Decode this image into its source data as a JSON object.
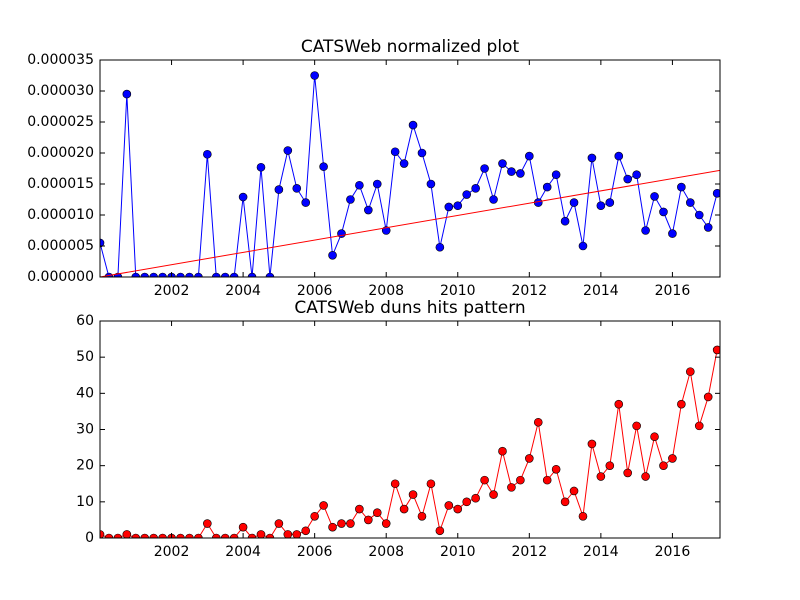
{
  "chart_data": [
    {
      "type": "line",
      "title": "CATSWeb normalized plot",
      "x": [
        2000,
        2000.25,
        2000.5,
        2000.75,
        2001,
        2001.25,
        2001.5,
        2001.75,
        2002,
        2002.25,
        2002.5,
        2002.75,
        2003,
        2003.25,
        2003.5,
        2003.75,
        2004,
        2004.25,
        2004.5,
        2004.75,
        2005,
        2005.25,
        2005.5,
        2005.75,
        2006,
        2006.25,
        2006.5,
        2006.75,
        2007,
        2007.25,
        2007.5,
        2007.75,
        2008,
        2008.25,
        2008.5,
        2008.75,
        2009,
        2009.25,
        2009.5,
        2009.75,
        2010,
        2010.25,
        2010.5,
        2010.75,
        2011,
        2011.25,
        2011.5,
        2011.75,
        2012,
        2012.25,
        2012.5,
        2012.75,
        2013,
        2013.25,
        2013.5,
        2013.75,
        2014,
        2014.25,
        2014.5,
        2014.75,
        2015,
        2015.25,
        2015.5,
        2015.75,
        2016,
        2016.25,
        2016.5,
        2016.75,
        2017,
        2017.25
      ],
      "series": [
        {
          "color": "#0000ff",
          "values": [
            5.5e-06,
            0,
            0,
            2.95e-05,
            0,
            0,
            0,
            0,
            0,
            0,
            0,
            0,
            1.98e-05,
            0,
            0,
            0,
            1.29e-05,
            0,
            1.77e-05,
            0,
            1.41e-05,
            2.04e-05,
            1.43e-05,
            1.2e-05,
            3.25e-05,
            1.78e-05,
            3.5e-06,
            7e-06,
            1.25e-05,
            1.48e-05,
            1.08e-05,
            1.5e-05,
            7.5e-06,
            2.02e-05,
            1.83e-05,
            2.45e-05,
            2e-05,
            1.5e-05,
            4.8e-06,
            1.13e-05,
            1.15e-05,
            1.33e-05,
            1.43e-05,
            1.75e-05,
            1.25e-05,
            1.83e-05,
            1.7e-05,
            1.67e-05,
            1.95e-05,
            1.2e-05,
            1.45e-05,
            1.65e-05,
            9e-06,
            1.2e-05,
            5e-06,
            1.92e-05,
            1.15e-05,
            1.2e-05,
            1.95e-05,
            1.58e-05,
            1.65e-05,
            7.5e-06,
            1.3e-05,
            1.05e-05,
            7e-06,
            1.45e-05,
            1.2e-05,
            1e-05,
            8e-06,
            1.35e-05
          ]
        }
      ],
      "trend": {
        "x": [
          2000,
          2017.33
        ],
        "values": [
          0,
          1.72e-05
        ],
        "color": "#ff0000"
      },
      "xlim": [
        2000,
        2017.33
      ],
      "xticks": [
        2002,
        2004,
        2006,
        2008,
        2010,
        2012,
        2014,
        2016
      ],
      "ylim": [
        0,
        3.5e-05
      ],
      "yticks": [
        {
          "value": 0,
          "label": "0.000000"
        },
        {
          "value": 5e-06,
          "label": "0.000005"
        },
        {
          "value": 1e-05,
          "label": "0.000010"
        },
        {
          "value": 1.5e-05,
          "label": "0.000015"
        },
        {
          "value": 2e-05,
          "label": "0.000020"
        },
        {
          "value": 2.5e-05,
          "label": "0.000025"
        },
        {
          "value": 3e-05,
          "label": "0.000030"
        },
        {
          "value": 3.5e-05,
          "label": "0.000035"
        }
      ]
    },
    {
      "type": "line",
      "title": "CATSWeb duns hits pattern",
      "x": [
        2000,
        2000.25,
        2000.5,
        2000.75,
        2001,
        2001.25,
        2001.5,
        2001.75,
        2002,
        2002.25,
        2002.5,
        2002.75,
        2003,
        2003.25,
        2003.5,
        2003.75,
        2004,
        2004.25,
        2004.5,
        2004.75,
        2005,
        2005.25,
        2005.5,
        2005.75,
        2006,
        2006.25,
        2006.5,
        2006.75,
        2007,
        2007.25,
        2007.5,
        2007.75,
        2008,
        2008.25,
        2008.5,
        2008.75,
        2009,
        2009.25,
        2009.5,
        2009.75,
        2010,
        2010.25,
        2010.5,
        2010.75,
        2011,
        2011.25,
        2011.5,
        2011.75,
        2012,
        2012.25,
        2012.5,
        2012.75,
        2013,
        2013.25,
        2013.5,
        2013.75,
        2014,
        2014.25,
        2014.5,
        2014.75,
        2015,
        2015.25,
        2015.5,
        2015.75,
        2016,
        2016.25,
        2016.5,
        2016.75,
        2017,
        2017.25
      ],
      "series": [
        {
          "color": "#ff0000",
          "values": [
            1,
            0,
            0,
            1,
            0,
            0,
            0,
            0,
            0,
            0,
            0,
            0,
            4,
            0,
            0,
            0,
            3,
            0,
            1,
            0,
            4,
            1,
            1,
            2,
            6,
            9,
            3,
            4,
            4,
            8,
            5,
            7,
            4,
            15,
            8,
            12,
            6,
            15,
            2,
            9,
            8,
            10,
            11,
            16,
            12,
            24,
            14,
            16,
            22,
            32,
            16,
            19,
            10,
            13,
            6,
            26,
            17,
            20,
            37,
            18,
            31,
            17,
            28,
            20,
            22,
            37,
            46,
            31,
            39,
            52
          ]
        }
      ],
      "xlim": [
        2000,
        2017.33
      ],
      "xticks": [
        2002,
        2004,
        2006,
        2008,
        2010,
        2012,
        2014,
        2016
      ],
      "ylim": [
        0,
        60
      ],
      "yticks": [
        0,
        10,
        20,
        30,
        40,
        50,
        60
      ]
    }
  ]
}
